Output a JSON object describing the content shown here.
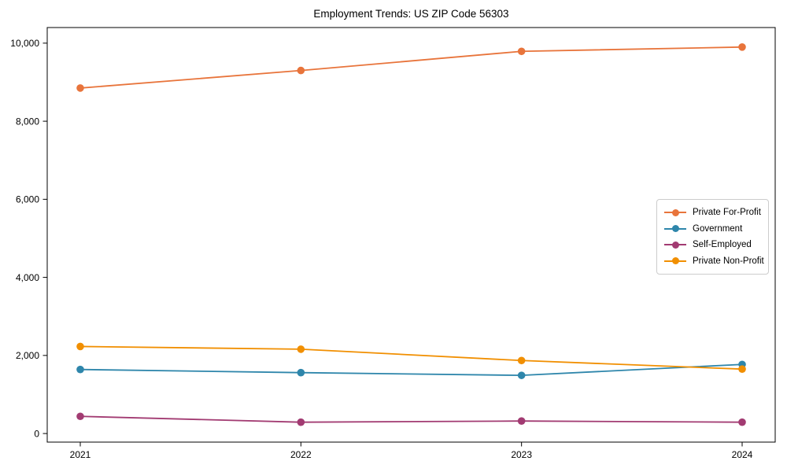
{
  "figure": {
    "background": "#ffffff",
    "axis_color": "#000000"
  },
  "chart_data": {
    "type": "line",
    "title": "Employment Trends: US ZIP Code 56303",
    "xlabel": "",
    "ylabel": "",
    "grid": false,
    "legend_position": "center-right",
    "x": [
      2021,
      2022,
      2023,
      2024
    ],
    "xtick_labels": [
      "2021",
      "2022",
      "2023",
      "2024"
    ],
    "ytick_values": [
      0,
      2000,
      4000,
      6000,
      8000,
      10000
    ],
    "ytick_labels": [
      "0",
      "2,000",
      "4,000",
      "6,000",
      "8,000",
      "10,000"
    ],
    "ylim": [
      -220,
      10400
    ],
    "series": [
      {
        "name": "Private For-Profit",
        "color": "#e8743b",
        "values": [
          8850,
          9300,
          9790,
          9900
        ]
      },
      {
        "name": "Government",
        "color": "#2e86ab",
        "values": [
          1640,
          1560,
          1490,
          1770
        ]
      },
      {
        "name": "Self-Employed",
        "color": "#a23b72",
        "values": [
          440,
          290,
          320,
          290
        ]
      },
      {
        "name": "Private Non-Profit",
        "color": "#f18f01",
        "values": [
          2230,
          2160,
          1870,
          1650
        ]
      }
    ]
  }
}
